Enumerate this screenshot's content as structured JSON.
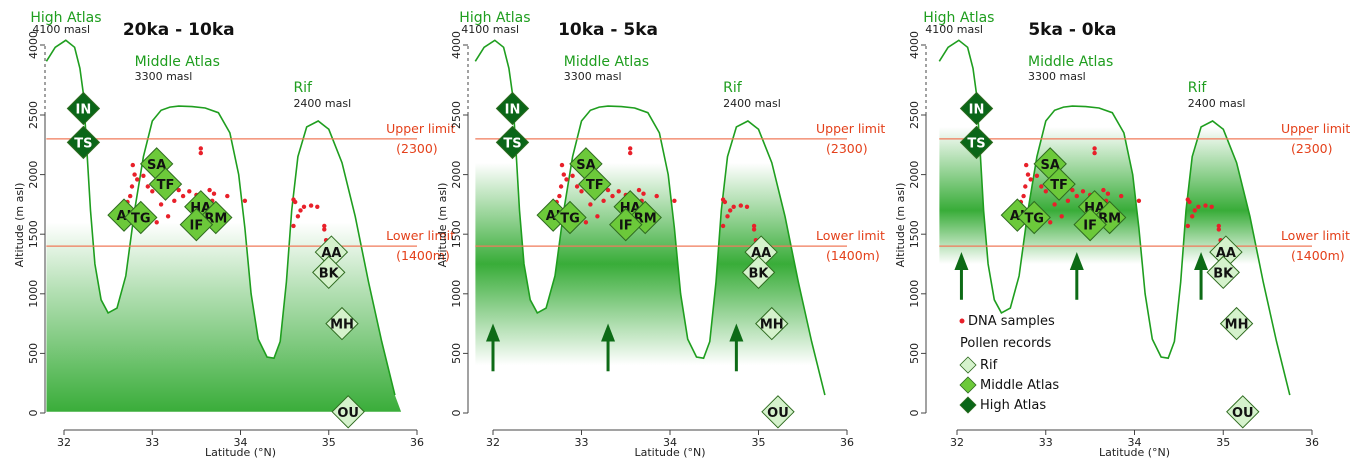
{
  "figure": {
    "colors": {
      "light_green": "#2ea82e",
      "mountain_line": "#1f9e1f",
      "limit_line": "#f07a5a",
      "limit_text": "#e4401a",
      "dna": "#e8202a",
      "rif": "#d5f2cc",
      "middle_atlas": "#6cc93a",
      "high_atlas": "#0a6618",
      "arrow": "#0d6b16"
    },
    "fill_mode_note": "fill gradient shows the vegetation belt per period",
    "peaks": [
      {
        "name": "High Atlas",
        "elev": "4100 masl"
      },
      {
        "name": "Middle Atlas",
        "elev": "3300 masl"
      },
      {
        "name": "Rif",
        "elev": "2400 masl"
      }
    ],
    "limits": {
      "upper": {
        "label": "Upper limit",
        "value_label": "(2300)"
      },
      "lower": {
        "label": "Lower limit",
        "value_label": "(1400m)"
      }
    },
    "legend": {
      "dna_label": "DNA samples",
      "pollen_title": "Pollen records",
      "rif_label": "Rif",
      "middle_label": "Middle Atlas",
      "high_label": "High Atlas"
    },
    "icons": [
      "arrow-up-icon",
      "diamond-icon",
      "dot-icon"
    ]
  },
  "chart_data": [
    {
      "type": "area",
      "title": "20ka - 10ka",
      "xlabel": "Latitude (°N)",
      "ylabel": "Altitude (m asl)",
      "xlim": [
        31.8,
        36
      ],
      "ylim": [
        0,
        4100
      ],
      "xticks": [
        "32",
        "33",
        "34",
        "35",
        "36"
      ],
      "yticks": [
        "0",
        "500",
        "1000",
        "1500",
        "2000",
        "2500",
        "4000"
      ],
      "vegetation_band": {
        "from": 0,
        "to": 1600,
        "fade_top": true
      },
      "upper_limit": 2300,
      "lower_limit": 1400,
      "arrows": [],
      "legend": false
    },
    {
      "type": "area",
      "title": "10ka - 5ka",
      "xlabel": "Latitude (°N)",
      "ylabel": "Altitude (m asl)",
      "xlim": [
        31.8,
        36
      ],
      "ylim": [
        0,
        4100
      ],
      "xticks": [
        "32",
        "33",
        "34",
        "35",
        "36"
      ],
      "yticks": [
        "0",
        "500",
        "1000",
        "1500",
        "2000",
        "2500",
        "4000"
      ],
      "vegetation_band": {
        "from": 400,
        "to": 2100,
        "center": 1250
      },
      "upper_limit": 2300,
      "lower_limit": 1400,
      "arrows": [
        32.0,
        33.3,
        34.75
      ],
      "arrow_range": [
        350,
        700
      ],
      "legend": false
    },
    {
      "type": "area",
      "title": "5ka - 0ka",
      "xlabel": "Latitude (°N)",
      "ylabel": "Altitude (m asl)",
      "xlim": [
        31.8,
        36
      ],
      "ylim": [
        0,
        4100
      ],
      "xticks": [
        "32",
        "33",
        "34",
        "35",
        "36"
      ],
      "yticks": [
        "0",
        "500",
        "1000",
        "1500",
        "2000",
        "2500",
        "4000"
      ],
      "vegetation_band": {
        "from": 1250,
        "to": 2400,
        "center": 1700
      },
      "upper_limit": 2300,
      "lower_limit": 1400,
      "arrows": [
        32.05,
        33.35,
        34.75
      ],
      "arrow_range": [
        950,
        1300
      ],
      "legend": true
    }
  ],
  "sites": {
    "pollen": [
      {
        "code": "IN",
        "lat": 32.22,
        "alt": 2640,
        "group": "high"
      },
      {
        "code": "TS",
        "lat": 32.22,
        "alt": 2270,
        "group": "high"
      },
      {
        "code": "SA",
        "lat": 33.05,
        "alt": 2090,
        "group": "middle"
      },
      {
        "code": "TF",
        "lat": 33.15,
        "alt": 1920,
        "group": "middle"
      },
      {
        "code": "HA",
        "lat": 33.55,
        "alt": 1730,
        "group": "middle"
      },
      {
        "code": "AI",
        "lat": 32.68,
        "alt": 1660,
        "group": "middle"
      },
      {
        "code": "TG",
        "lat": 32.87,
        "alt": 1640,
        "group": "middle"
      },
      {
        "code": "RM",
        "lat": 33.72,
        "alt": 1640,
        "group": "middle"
      },
      {
        "code": "IF",
        "lat": 33.5,
        "alt": 1580,
        "group": "middle"
      },
      {
        "code": "AA",
        "lat": 35.03,
        "alt": 1350,
        "group": "rif"
      },
      {
        "code": "BK",
        "lat": 35.0,
        "alt": 1180,
        "group": "rif"
      },
      {
        "code": "MH",
        "lat": 35.15,
        "alt": 750,
        "group": "rif"
      },
      {
        "code": "OU",
        "lat": 35.22,
        "alt": 10,
        "group": "rif"
      }
    ],
    "dna": [
      [
        32.78,
        2080
      ],
      [
        32.8,
        2000
      ],
      [
        32.83,
        1960
      ],
      [
        32.77,
        1900
      ],
      [
        32.75,
        1820
      ],
      [
        32.72,
        1770
      ],
      [
        32.9,
        1990
      ],
      [
        32.95,
        1900
      ],
      [
        33.0,
        1860
      ],
      [
        33.08,
        2000
      ],
      [
        33.2,
        1900
      ],
      [
        33.25,
        1780
      ],
      [
        33.1,
        1750
      ],
      [
        33.18,
        1650
      ],
      [
        33.3,
        1870
      ],
      [
        33.35,
        1820
      ],
      [
        33.42,
        1860
      ],
      [
        33.5,
        1830
      ],
      [
        33.55,
        2220
      ],
      [
        33.55,
        2180
      ],
      [
        33.6,
        1800
      ],
      [
        33.65,
        1870
      ],
      [
        33.7,
        1840
      ],
      [
        33.68,
        1780
      ],
      [
        33.73,
        1730
      ],
      [
        33.85,
        1820
      ],
      [
        34.05,
        1780
      ],
      [
        32.7,
        1700
      ],
      [
        33.05,
        1600
      ],
      [
        33.45,
        1710
      ],
      [
        34.6,
        1790
      ],
      [
        34.62,
        1770
      ],
      [
        34.72,
        1730
      ],
      [
        34.8,
        1740
      ],
      [
        34.87,
        1730
      ],
      [
        34.68,
        1700
      ],
      [
        34.65,
        1650
      ],
      [
        34.6,
        1570
      ],
      [
        34.95,
        1570
      ],
      [
        34.95,
        1540
      ],
      [
        34.97,
        1450
      ]
    ]
  }
}
